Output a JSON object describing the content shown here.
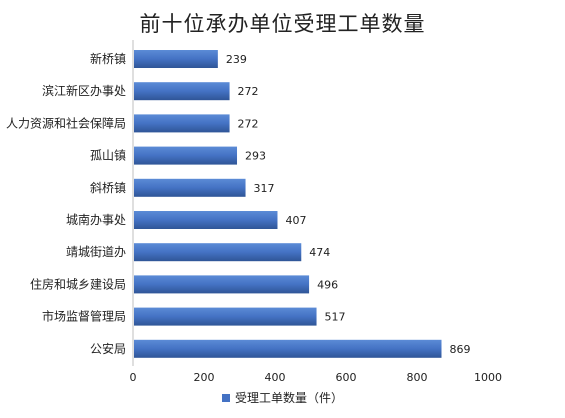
{
  "chart_data": {
    "type": "bar",
    "orientation": "horizontal",
    "title": "前十位承办单位受理工单数量",
    "categories": [
      "新桥镇",
      "滨江新区办事处",
      "人力资源和社会保障局",
      "孤山镇",
      "斜桥镇",
      "城南办事处",
      "靖城街道办",
      "住房和城乡建设局",
      "市场监督管理局",
      "公安局"
    ],
    "series": [
      {
        "name": "受理工单数量（件）",
        "values": [
          239,
          272,
          272,
          293,
          317,
          407,
          474,
          496,
          517,
          869
        ],
        "color": "#4472C4"
      }
    ],
    "xlim": [
      0,
      1000
    ],
    "xticks": [
      0,
      200,
      400,
      600,
      800,
      1000
    ],
    "xlabel": "",
    "ylabel": "",
    "grid": false,
    "legend_position": "bottom",
    "data_labels": true
  }
}
